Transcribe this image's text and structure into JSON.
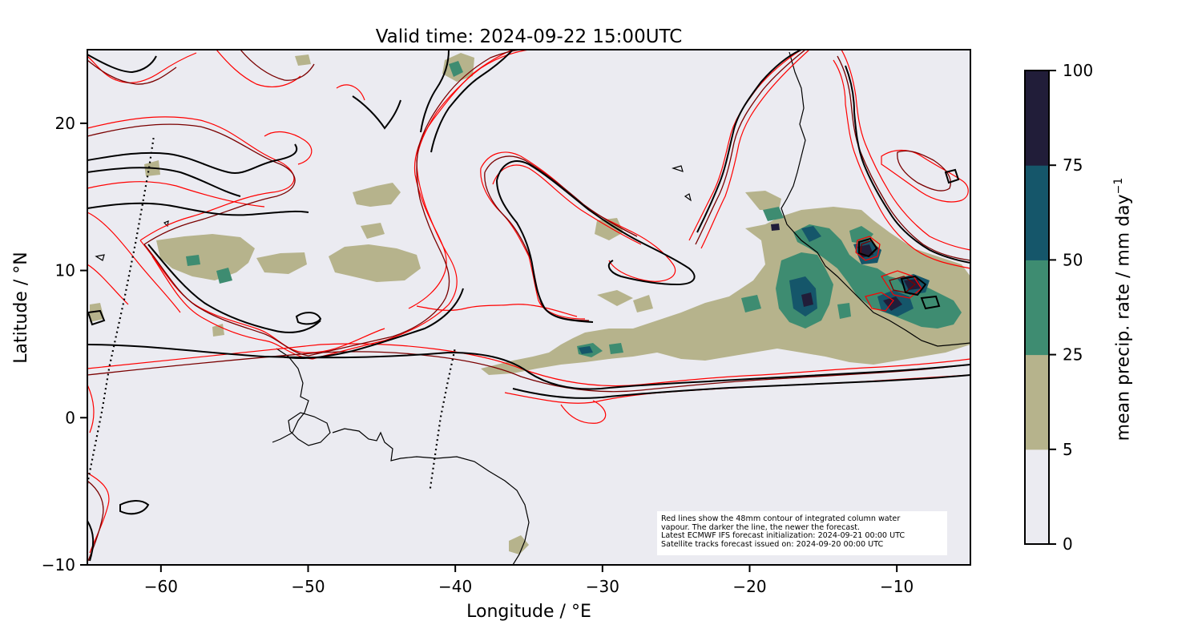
{
  "title": "Valid time: 2024-09-22 15:00UTC",
  "xlabel": "Longitude / °E",
  "ylabel": "Latitude / °N",
  "colorbar": {
    "label_prefix": "mean precip. rate / mm day",
    "label_exponent": "−1",
    "ticks": [
      "0",
      "5",
      "25",
      "50",
      "75",
      "100"
    ],
    "bins": [
      {
        "from": 0,
        "to": 5,
        "color": "#ebebf1"
      },
      {
        "from": 5,
        "to": 25,
        "color": "#b6b38c"
      },
      {
        "from": 25,
        "to": 50,
        "color": "#3e8c71"
      },
      {
        "from": 50,
        "to": 75,
        "color": "#15566a"
      },
      {
        "from": 75,
        "to": 100,
        "color": "#211d39"
      }
    ]
  },
  "note": {
    "line1": "Red lines show the 48mm contour of integrated column water",
    "line2": "vapour. The darker the line, the newer the forecast.",
    "line3": "Latest ECMWF IFS forecast initialization: 2024-09-21 00:00 UTC",
    "line4": "Satellite tracks forecast issued on: 2024-09-20 00:00 UTC"
  },
  "chart_data": {
    "type": "map",
    "xlim": [
      -65,
      -5
    ],
    "ylim": [
      -10,
      25
    ],
    "xticks": [
      -60,
      -50,
      -40,
      -30,
      -20,
      -10
    ],
    "yticks": [
      -10,
      0,
      10,
      20
    ],
    "xtick_labels": [
      "−60",
      "−50",
      "−40",
      "−30",
      "−20",
      "−10"
    ],
    "ytick_labels": [
      "−10",
      "0",
      "10",
      "20"
    ],
    "background_color": "#ebebf1",
    "contour_colors": {
      "oldest": "#ff0000",
      "older": "#cc0000",
      "newer": "#7a0000",
      "newest": "#000000"
    },
    "satellite_tracks": [
      [
        [
          -65.0,
          -4.5
        ],
        [
          -64.0,
          0.5
        ],
        [
          -63.5,
          3.5
        ],
        [
          -62.5,
          8.0
        ],
        [
          -61.7,
          12.0
        ],
        [
          -60.8,
          17.0
        ],
        [
          -60.5,
          19.0
        ]
      ],
      [
        [
          -41.7,
          -4.8
        ],
        [
          -41.0,
          0.0
        ],
        [
          -40.5,
          2.5
        ],
        [
          -40.0,
          4.8
        ]
      ]
    ]
  }
}
